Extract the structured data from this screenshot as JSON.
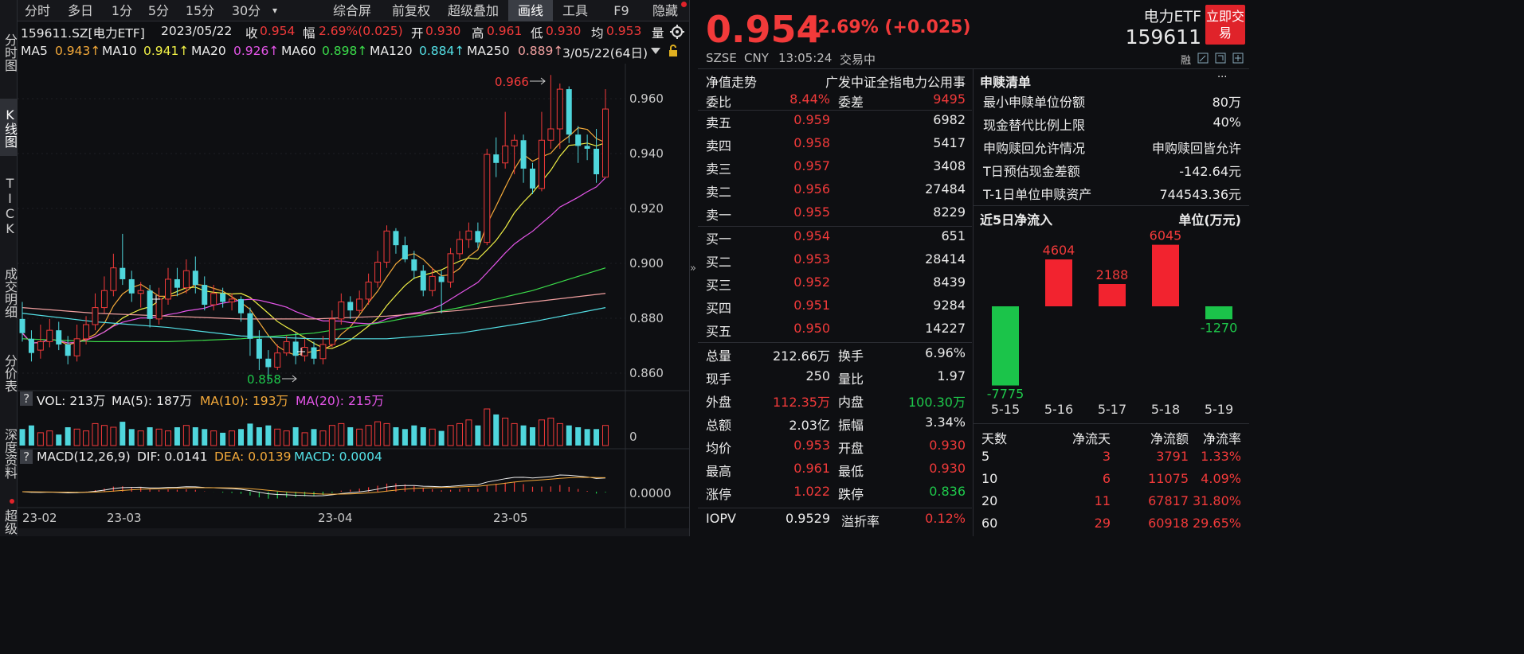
{
  "sidebar": {
    "items": [
      "分时图",
      "K线图",
      "TICK",
      "成交明细",
      "分价表",
      "深度资料",
      "超级"
    ]
  },
  "toptabs": [
    "分时",
    "多日",
    "1分",
    "5分",
    "15分",
    "30分",
    "▾",
    "综合屏",
    "前复权",
    "超级叠加",
    "画线",
    "工具",
    "F9",
    "隐藏"
  ],
  "header": {
    "code": "159611.SZ[电力ETF]",
    "date": "2023/05/22",
    "close_label": "收",
    "close": "0.954",
    "chg_label": "幅",
    "chg": "2.69%(0.025)",
    "open_label": "开",
    "open": "0.930",
    "high_label": "高",
    "high": "0.961",
    "low_label": "低",
    "low": "0.930",
    "avg_label": "均",
    "avg": "0.953",
    "vol_label": "量"
  },
  "ma": {
    "ma5": "MA5",
    "ma5v": "0.943↑",
    "ma10": "MA10",
    "ma10v": "0.941↑",
    "ma20": "MA20",
    "ma20v": "0.926↑",
    "ma60": "MA60",
    "ma60v": "0.898↑",
    "ma120": "MA120",
    "ma120v": "0.884↑",
    "ma250": "MA250",
    "ma250v": "0.889↑",
    "range": "3/05/22(64日)"
  },
  "price_axis": [
    "0.960",
    "0.940",
    "0.920",
    "0.900",
    "0.880",
    "0.860"
  ],
  "annot": {
    "high": "0.966",
    "low": "0.858"
  },
  "vol": {
    "label": "VOL: 213万",
    "ma5": "MA(5): 187万",
    "ma10": "MA(10): 193万",
    "ma20": "MA(20): 215万",
    "axis": "0"
  },
  "macd": {
    "label": "MACD(12,26,9)",
    "dif": "DIF: 0.0141",
    "dea": "DEA: 0.0139",
    "macd": "MACD: 0.0004",
    "axis": "0.0000"
  },
  "dates": [
    "23-02",
    "23-03",
    "23-04",
    "23-05"
  ],
  "chart_data": {
    "type": "candlestick",
    "title": "159611.SZ[电力ETF]",
    "ylim": [
      0.855,
      0.97
    ],
    "candles": [
      [
        0.88,
        0.875,
        0.886,
        0.872
      ],
      [
        0.873,
        0.868,
        0.876,
        0.865
      ],
      [
        0.869,
        0.872,
        0.878,
        0.866
      ],
      [
        0.872,
        0.876,
        0.88,
        0.87
      ],
      [
        0.876,
        0.871,
        0.879,
        0.869
      ],
      [
        0.871,
        0.867,
        0.874,
        0.864
      ],
      [
        0.867,
        0.873,
        0.878,
        0.865
      ],
      [
        0.873,
        0.878,
        0.881,
        0.871
      ],
      [
        0.878,
        0.884,
        0.889,
        0.876
      ],
      [
        0.884,
        0.89,
        0.895,
        0.882
      ],
      [
        0.89,
        0.898,
        0.903,
        0.888
      ],
      [
        0.898,
        0.894,
        0.91,
        0.892
      ],
      [
        0.894,
        0.889,
        0.897,
        0.886
      ],
      [
        0.889,
        0.89,
        0.893,
        0.884
      ],
      [
        0.89,
        0.88,
        0.892,
        0.877
      ],
      [
        0.88,
        0.887,
        0.891,
        0.878
      ],
      [
        0.887,
        0.894,
        0.898,
        0.885
      ],
      [
        0.894,
        0.891,
        0.898,
        0.888
      ],
      [
        0.891,
        0.897,
        0.901,
        0.889
      ],
      [
        0.897,
        0.892,
        0.902,
        0.889
      ],
      [
        0.892,
        0.885,
        0.895,
        0.883
      ],
      [
        0.885,
        0.889,
        0.892,
        0.883
      ],
      [
        0.889,
        0.886,
        0.891,
        0.884
      ],
      [
        0.886,
        0.887,
        0.889,
        0.883
      ],
      [
        0.887,
        0.882,
        0.888,
        0.879
      ],
      [
        0.882,
        0.873,
        0.884,
        0.867
      ],
      [
        0.873,
        0.866,
        0.876,
        0.862
      ],
      [
        0.866,
        0.863,
        0.869,
        0.858
      ],
      [
        0.863,
        0.868,
        0.871,
        0.862
      ],
      [
        0.868,
        0.872,
        0.874,
        0.867
      ],
      [
        0.872,
        0.867,
        0.875,
        0.864
      ],
      [
        0.867,
        0.87,
        0.873,
        0.865
      ],
      [
        0.87,
        0.866,
        0.872,
        0.864
      ],
      [
        0.866,
        0.871,
        0.874,
        0.864
      ],
      [
        0.871,
        0.88,
        0.883,
        0.87
      ],
      [
        0.88,
        0.886,
        0.889,
        0.878
      ],
      [
        0.886,
        0.883,
        0.888,
        0.88
      ],
      [
        0.883,
        0.887,
        0.89,
        0.882
      ],
      [
        0.887,
        0.893,
        0.896,
        0.885
      ],
      [
        0.893,
        0.9,
        0.904,
        0.891
      ],
      [
        0.9,
        0.911,
        0.913,
        0.898
      ],
      [
        0.911,
        0.906,
        0.912,
        0.903
      ],
      [
        0.906,
        0.901,
        0.909,
        0.9
      ],
      [
        0.901,
        0.897,
        0.904,
        0.894
      ],
      [
        0.897,
        0.89,
        0.899,
        0.888
      ],
      [
        0.89,
        0.895,
        0.898,
        0.888
      ],
      [
        0.895,
        0.893,
        0.897,
        0.882
      ],
      [
        0.893,
        0.903,
        0.905,
        0.891
      ],
      [
        0.903,
        0.908,
        0.911,
        0.901
      ],
      [
        0.908,
        0.911,
        0.914,
        0.905
      ],
      [
        0.911,
        0.907,
        0.914,
        0.905
      ],
      [
        0.907,
        0.938,
        0.94,
        0.906
      ],
      [
        0.938,
        0.935,
        0.944,
        0.93
      ],
      [
        0.935,
        0.941,
        0.953,
        0.933
      ],
      [
        0.941,
        0.943,
        0.945,
        0.931
      ],
      [
        0.943,
        0.933,
        0.945,
        0.928
      ],
      [
        0.933,
        0.926,
        0.935,
        0.924
      ],
      [
        0.926,
        0.943,
        0.953,
        0.925
      ],
      [
        0.943,
        0.947,
        0.966,
        0.94
      ],
      [
        0.947,
        0.961,
        0.963,
        0.94
      ],
      [
        0.961,
        0.945,
        0.962,
        0.942
      ],
      [
        0.945,
        0.941,
        0.948,
        0.935
      ],
      [
        0.941,
        0.94,
        0.945,
        0.936
      ],
      [
        0.94,
        0.931,
        0.947,
        0.928
      ],
      [
        0.93,
        0.954,
        0.961,
        0.93
      ]
    ],
    "volumes": [
      0.45,
      0.55,
      0.35,
      0.4,
      0.3,
      0.5,
      0.45,
      0.4,
      0.6,
      0.55,
      0.5,
      0.65,
      0.45,
      0.4,
      0.5,
      0.45,
      0.4,
      0.5,
      0.55,
      0.5,
      0.45,
      0.4,
      0.35,
      0.4,
      0.45,
      0.6,
      0.5,
      0.55,
      0.45,
      0.4,
      0.5,
      0.35,
      0.45,
      0.4,
      0.55,
      0.6,
      0.5,
      0.45,
      0.55,
      0.65,
      0.6,
      0.5,
      0.45,
      0.55,
      0.5,
      0.45,
      0.4,
      0.55,
      0.6,
      0.7,
      0.55,
      1.0,
      0.85,
      0.75,
      0.6,
      0.55,
      0.5,
      0.7,
      0.75,
      0.6,
      0.55,
      0.5,
      0.45,
      0.45,
      0.55
    ]
  },
  "quote": {
    "price": "0.954",
    "change": "+2.69% (+0.025)",
    "name": "电力ETF",
    "code": "159611",
    "market": "SZSE",
    "currency": "CNY",
    "time": "13:05:24",
    "status": "交易中",
    "btn": "立即交易",
    "rong": "融"
  },
  "book": {
    "title": "净值走势",
    "fund": "广发中证全指电力公用事",
    "webi_label": "委比",
    "webi": "8.44%",
    "wecha_label": "委差",
    "wecha": "9495",
    "asks": [
      [
        "卖五",
        "0.959",
        "6982"
      ],
      [
        "卖四",
        "0.958",
        "5417"
      ],
      [
        "卖三",
        "0.957",
        "3408"
      ],
      [
        "卖二",
        "0.956",
        "27484"
      ],
      [
        "卖一",
        "0.955",
        "8229"
      ]
    ],
    "bids": [
      [
        "买一",
        "0.954",
        "651"
      ],
      [
        "买二",
        "0.953",
        "28414"
      ],
      [
        "买三",
        "0.952",
        "8439"
      ],
      [
        "买四",
        "0.951",
        "9284"
      ],
      [
        "买五",
        "0.950",
        "14227"
      ]
    ]
  },
  "stats": [
    [
      {
        "l": "总量",
        "v": "212.66万",
        "c": "white"
      },
      {
        "l": "换手",
        "v": "6.96%",
        "c": "white"
      }
    ],
    [
      {
        "l": "现手",
        "v": "250",
        "c": "white"
      },
      {
        "l": "量比",
        "v": "1.97",
        "c": "white"
      }
    ],
    [
      {
        "l": "外盘",
        "v": "112.35万",
        "c": "red"
      },
      {
        "l": "内盘",
        "v": "100.30万",
        "c": "green"
      }
    ],
    [
      {
        "l": "总额",
        "v": "2.03亿",
        "c": "white"
      },
      {
        "l": "振幅",
        "v": "3.34%",
        "c": "white"
      }
    ],
    [
      {
        "l": "均价",
        "v": "0.953",
        "c": "red"
      },
      {
        "l": "开盘",
        "v": "0.930",
        "c": "red"
      }
    ],
    [
      {
        "l": "最高",
        "v": "0.961",
        "c": "red"
      },
      {
        "l": "最低",
        "v": "0.930",
        "c": "red"
      }
    ],
    [
      {
        "l": "涨停",
        "v": "1.022",
        "c": "red"
      },
      {
        "l": "跌停",
        "v": "0.836",
        "c": "green"
      }
    ]
  ],
  "iopv": {
    "l": "IOPV",
    "v": "0.9529",
    "l2": "溢折率",
    "v2": "0.12%"
  },
  "redeem": {
    "title": "申赎清单",
    "more": "···",
    "rows": [
      [
        "最小申赎单位份额",
        "80万"
      ],
      [
        "现金替代比例上限",
        "40%"
      ],
      [
        "申购赎回允许情况",
        "申购赎回皆允许"
      ],
      [
        "T日预估现金差额",
        "-142.64元"
      ],
      [
        "T-1日单位申赎资产",
        "744543.36元"
      ]
    ]
  },
  "flow": {
    "title": "近5日净流入",
    "unit": "单位(万元)",
    "bars": [
      {
        "d": "5-15",
        "v": -7775
      },
      {
        "d": "5-16",
        "v": 4604
      },
      {
        "d": "5-17",
        "v": 2188
      },
      {
        "d": "5-18",
        "v": 6045
      },
      {
        "d": "5-19",
        "v": -1270
      }
    ]
  },
  "flowtable": {
    "headers": [
      "天数",
      "净流天",
      "净流额",
      "净流率"
    ],
    "rows": [
      [
        "5",
        "3",
        "3791",
        "1.33%"
      ],
      [
        "10",
        "6",
        "11075",
        "4.09%"
      ],
      [
        "20",
        "11",
        "67817",
        "31.80%"
      ],
      [
        "60",
        "29",
        "60918",
        "29.65%"
      ]
    ]
  }
}
